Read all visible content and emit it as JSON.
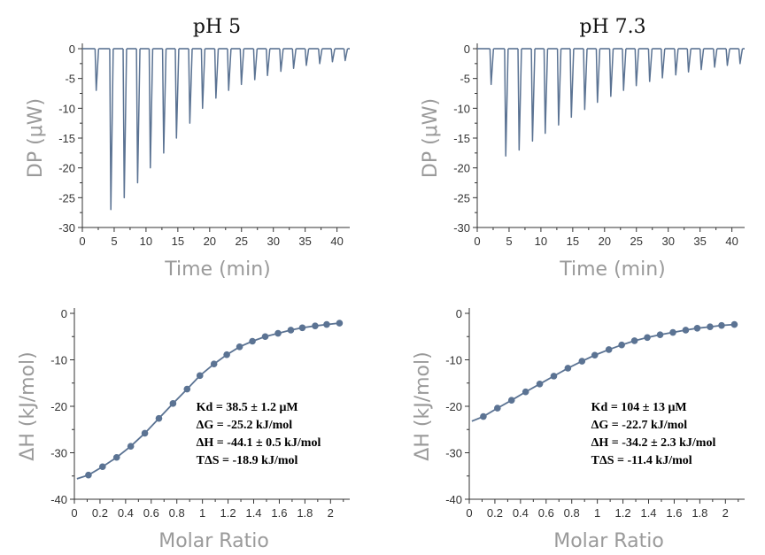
{
  "chart_data": [
    {
      "id": "dp_ph5",
      "type": "line",
      "title": "pH 5",
      "xlabel": "Time (min)",
      "ylabel": "DP (μW)",
      "xlim": [
        0,
        42
      ],
      "ylim": [
        -30,
        0
      ],
      "xticks": [
        0,
        5,
        10,
        15,
        20,
        25,
        30,
        35,
        40
      ],
      "yticks": [
        0,
        -5,
        -10,
        -15,
        -20,
        -25,
        -30
      ],
      "color": "#5b7393",
      "baseline_end_min": 42,
      "injections": {
        "time_min": [
          2.0,
          4.3,
          6.4,
          8.5,
          10.5,
          12.6,
          14.6,
          16.7,
          18.7,
          20.8,
          22.8,
          24.8,
          26.9,
          28.9,
          31.0,
          33.0,
          35.0,
          37.1,
          39.1,
          41.1
        ],
        "peak_dp_uw": [
          -7.0,
          -27.0,
          -25.0,
          -22.5,
          -20.0,
          -17.5,
          -15.0,
          -12.5,
          -10.0,
          -8.3,
          -7.0,
          -6.0,
          -5.2,
          -4.5,
          -3.8,
          -3.3,
          -2.8,
          -2.5,
          -2.2,
          -2.0
        ]
      }
    },
    {
      "id": "dp_ph73",
      "type": "line",
      "title": "pH 7.3",
      "xlabel": "Time (min)",
      "ylabel": "DP (μW)",
      "xlim": [
        0,
        42
      ],
      "ylim": [
        -30,
        0
      ],
      "xticks": [
        0,
        5,
        10,
        15,
        20,
        25,
        30,
        35,
        40
      ],
      "yticks": [
        0,
        -5,
        -10,
        -15,
        -20,
        -25,
        -30
      ],
      "color": "#5b7393",
      "baseline_end_min": 42,
      "injections": {
        "time_min": [
          2.0,
          4.3,
          6.4,
          8.5,
          10.5,
          12.6,
          14.6,
          16.7,
          18.7,
          20.8,
          22.8,
          24.8,
          26.9,
          28.9,
          31.0,
          33.0,
          35.0,
          37.1,
          39.1,
          41.1
        ],
        "peak_dp_uw": [
          -6.0,
          -18.0,
          -17.0,
          -15.5,
          -14.2,
          -12.8,
          -11.5,
          -10.2,
          -9.0,
          -8.0,
          -7.0,
          -6.2,
          -5.5,
          -4.9,
          -4.4,
          -3.9,
          -3.5,
          -3.1,
          -2.8,
          -2.5
        ]
      }
    },
    {
      "id": "dh_ph5",
      "type": "scatter",
      "xlabel": "Molar Ratio",
      "ylabel": "ΔH (kJ/mol)",
      "xlim": [
        0,
        2.15
      ],
      "ylim": [
        -40,
        0
      ],
      "xticks": [
        0,
        0.2,
        0.4,
        0.6,
        0.8,
        1,
        1.2,
        1.4,
        1.6,
        1.8,
        2
      ],
      "yticks": [
        0,
        -10,
        -20,
        -30,
        -40
      ],
      "color": "#5b7393",
      "points": {
        "x": [
          0.11,
          0.22,
          0.33,
          0.44,
          0.55,
          0.66,
          0.77,
          0.88,
          0.98,
          1.09,
          1.19,
          1.29,
          1.39,
          1.49,
          1.59,
          1.69,
          1.78,
          1.88,
          1.97,
          2.07
        ],
        "y": [
          -34.8,
          -33.0,
          -31.0,
          -28.6,
          -25.8,
          -22.6,
          -19.4,
          -16.3,
          -13.4,
          -10.9,
          -8.9,
          -7.2,
          -6.0,
          -5.0,
          -4.3,
          -3.6,
          -3.1,
          -2.7,
          -2.4,
          -2.1
        ]
      },
      "fit": {
        "x": [
          0.02,
          0.11,
          0.22,
          0.33,
          0.44,
          0.55,
          0.66,
          0.77,
          0.88,
          0.98,
          1.09,
          1.19,
          1.29,
          1.39,
          1.49,
          1.59,
          1.69,
          1.78,
          1.88,
          1.97,
          2.07
        ],
        "y": [
          -35.6,
          -34.8,
          -33.0,
          -31.0,
          -28.6,
          -25.8,
          -22.6,
          -19.4,
          -16.3,
          -13.4,
          -10.9,
          -8.9,
          -7.2,
          -6.0,
          -5.0,
          -4.3,
          -3.6,
          -3.1,
          -2.7,
          -2.4,
          -2.1
        ]
      },
      "annotation": [
        "Kd = 38.5 ± 1.2 μM",
        "ΔG = -25.2 kJ/mol",
        "ΔH = -44.1 ±  0.5 kJ/mol",
        "TΔS = -18.9 kJ/mol"
      ]
    },
    {
      "id": "dh_ph73",
      "type": "scatter",
      "xlabel": "Molar Ratio",
      "ylabel": "ΔH (kJ/mol)",
      "xlim": [
        0,
        2.15
      ],
      "ylim": [
        -40,
        0
      ],
      "xticks": [
        0,
        0.2,
        0.4,
        0.6,
        0.8,
        1,
        1.2,
        1.4,
        1.6,
        1.8,
        2
      ],
      "yticks": [
        0,
        -10,
        -20,
        -30,
        -40
      ],
      "color": "#5b7393",
      "points": {
        "x": [
          0.11,
          0.22,
          0.33,
          0.44,
          0.55,
          0.66,
          0.77,
          0.88,
          0.98,
          1.09,
          1.19,
          1.29,
          1.39,
          1.49,
          1.59,
          1.69,
          1.78,
          1.88,
          1.97,
          2.07
        ],
        "y": [
          -22.2,
          -20.4,
          -18.7,
          -16.9,
          -15.2,
          -13.5,
          -11.8,
          -10.3,
          -9.0,
          -7.8,
          -6.8,
          -5.9,
          -5.2,
          -4.6,
          -4.1,
          -3.6,
          -3.2,
          -2.9,
          -2.6,
          -2.4
        ]
      },
      "fit": {
        "x": [
          0.02,
          0.11,
          0.22,
          0.33,
          0.44,
          0.55,
          0.66,
          0.77,
          0.88,
          0.98,
          1.09,
          1.19,
          1.29,
          1.39,
          1.49,
          1.59,
          1.69,
          1.78,
          1.88,
          1.97,
          2.07
        ],
        "y": [
          -23.2,
          -22.2,
          -20.4,
          -18.7,
          -16.9,
          -15.2,
          -13.5,
          -11.8,
          -10.3,
          -9.0,
          -7.8,
          -6.8,
          -5.9,
          -5.2,
          -4.6,
          -4.1,
          -3.6,
          -3.2,
          -2.9,
          -2.6,
          -2.4
        ]
      },
      "annotation": [
        "Kd = 104 ± 13 μM",
        "ΔG = -22.7 kJ/mol",
        "ΔH = -34.2 ±  2.3 kJ/mol",
        "TΔS = -11.4 kJ/mol"
      ]
    }
  ]
}
